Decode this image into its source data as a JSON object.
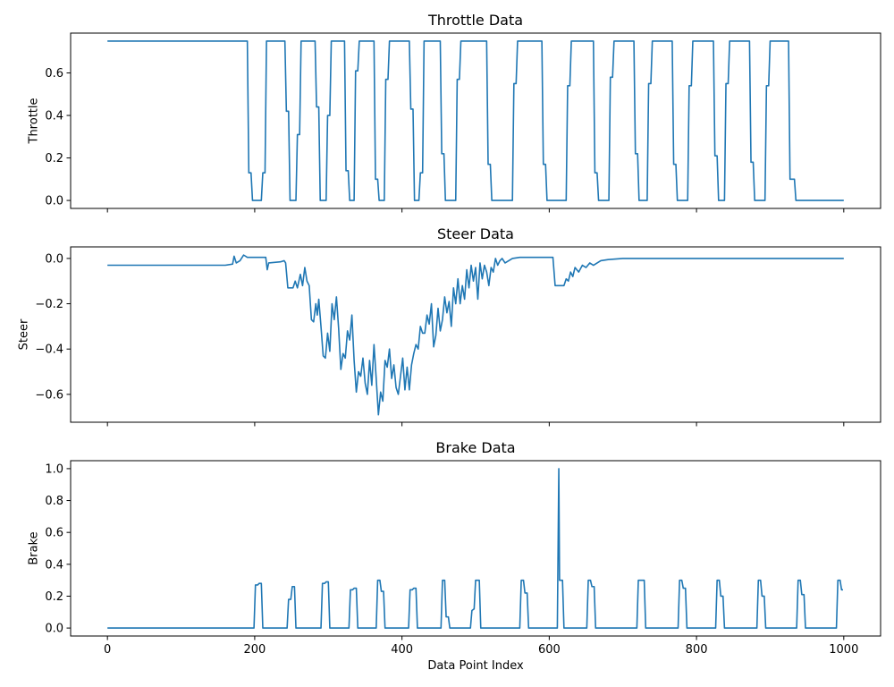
{
  "chart_data": [
    {
      "type": "line",
      "title": "Throttle Data",
      "ylabel": "Throttle",
      "color": "#1f77b4",
      "xlim": [
        -50,
        1050
      ],
      "xticks": [
        0,
        200,
        400,
        600,
        800,
        1000
      ],
      "ylim": [
        -0.0375,
        0.7875
      ],
      "yticks": [
        {
          "value": 0,
          "label": "0.0"
        },
        0.2,
        0.4,
        0.6
      ],
      "x": [
        0,
        190,
        192,
        195,
        197,
        209,
        211,
        214,
        216,
        241,
        243,
        246,
        248,
        256,
        258,
        261,
        263,
        282,
        284,
        287,
        289,
        297,
        299,
        302,
        304,
        322,
        324,
        327,
        329,
        335,
        337,
        340,
        342,
        362,
        364,
        367,
        369,
        376,
        378,
        381,
        383,
        410,
        412,
        415,
        417,
        423,
        425,
        428,
        430,
        452,
        454,
        457,
        459,
        473,
        475,
        478,
        480,
        515,
        517,
        520,
        522,
        550,
        552,
        555,
        557,
        590,
        592,
        595,
        597,
        623,
        625,
        628,
        630,
        660,
        662,
        665,
        667,
        681,
        683,
        686,
        688,
        715,
        717,
        720,
        722,
        733,
        735,
        738,
        740,
        767,
        769,
        772,
        774,
        788,
        790,
        793,
        795,
        823,
        825,
        828,
        830,
        838,
        840,
        843,
        845,
        872,
        874,
        877,
        879,
        893,
        895,
        898,
        900,
        925,
        927,
        933,
        935,
        1000
      ],
      "values": [
        0.75,
        0.75,
        0.13,
        0.13,
        0,
        0,
        0.13,
        0.13,
        0.75,
        0.75,
        0.42,
        0.42,
        0,
        0,
        0.31,
        0.31,
        0.75,
        0.75,
        0.44,
        0.44,
        0,
        0,
        0.4,
        0.4,
        0.75,
        0.75,
        0.14,
        0.14,
        0,
        0,
        0.61,
        0.61,
        0.75,
        0.75,
        0.1,
        0.1,
        0,
        0,
        0.57,
        0.57,
        0.75,
        0.75,
        0.43,
        0.43,
        0,
        0,
        0.13,
        0.13,
        0.75,
        0.75,
        0.22,
        0.22,
        0,
        0,
        0.57,
        0.57,
        0.75,
        0.75,
        0.17,
        0.17,
        0,
        0,
        0.55,
        0.55,
        0.75,
        0.75,
        0.17,
        0.17,
        0,
        0,
        0.54,
        0.54,
        0.75,
        0.75,
        0.13,
        0.13,
        0,
        0,
        0.58,
        0.58,
        0.75,
        0.75,
        0.22,
        0.22,
        0,
        0,
        0.55,
        0.55,
        0.75,
        0.75,
        0.17,
        0.17,
        0,
        0,
        0.54,
        0.54,
        0.75,
        0.75,
        0.21,
        0.21,
        0,
        0,
        0.55,
        0.55,
        0.75,
        0.75,
        0.18,
        0.18,
        0,
        0,
        0.54,
        0.54,
        0.75,
        0.75,
        0.1,
        0.1,
        0,
        0
      ]
    },
    {
      "type": "line",
      "title": "Steer Data",
      "ylabel": "Steer",
      "color": "#1f77b4",
      "xlim": [
        -50,
        1050
      ],
      "xticks": [
        0,
        200,
        400,
        600,
        800,
        1000
      ],
      "ylim": [
        -0.723,
        0.051
      ],
      "yticks": [
        {
          "value": -0.6,
          "label": "−0.6"
        },
        {
          "value": -0.4,
          "label": "−0.4"
        },
        {
          "value": -0.2,
          "label": "−0.2"
        },
        {
          "value": 0,
          "label": "0.0"
        }
      ],
      "x": [
        0,
        160,
        170,
        172,
        175,
        180,
        185,
        190,
        215,
        217,
        219,
        235,
        240,
        242,
        245,
        252,
        255,
        258,
        262,
        265,
        268,
        271,
        274,
        277,
        280,
        283,
        285,
        287,
        290,
        293,
        296,
        299,
        302,
        305,
        308,
        311,
        314,
        317,
        320,
        323,
        326,
        329,
        332,
        335,
        338,
        341,
        344,
        347,
        350,
        353,
        356,
        359,
        362,
        365,
        368,
        371,
        374,
        377,
        380,
        383,
        386,
        389,
        392,
        395,
        398,
        401,
        404,
        407,
        410,
        413,
        416,
        419,
        422,
        425,
        428,
        431,
        434,
        437,
        440,
        443,
        446,
        449,
        452,
        455,
        458,
        461,
        464,
        467,
        470,
        473,
        476,
        479,
        482,
        485,
        488,
        491,
        494,
        497,
        500,
        503,
        506,
        509,
        512,
        515,
        518,
        521,
        524,
        527,
        530,
        533,
        536,
        540,
        545,
        550,
        560,
        605,
        608,
        620,
        623,
        626,
        629,
        632,
        635,
        640,
        645,
        650,
        655,
        660,
        670,
        680,
        700,
        1000
      ],
      "values": [
        -0.03,
        -0.03,
        -0.025,
        0.01,
        -0.02,
        -0.01,
        0.015,
        0.005,
        0.005,
        -0.05,
        -0.02,
        -0.015,
        -0.01,
        -0.02,
        -0.13,
        -0.13,
        -0.1,
        -0.13,
        -0.07,
        -0.12,
        -0.04,
        -0.1,
        -0.12,
        -0.27,
        -0.28,
        -0.2,
        -0.25,
        -0.18,
        -0.3,
        -0.43,
        -0.44,
        -0.33,
        -0.41,
        -0.2,
        -0.27,
        -0.17,
        -0.31,
        -0.49,
        -0.42,
        -0.44,
        -0.32,
        -0.36,
        -0.25,
        -0.45,
        -0.59,
        -0.5,
        -0.52,
        -0.44,
        -0.55,
        -0.6,
        -0.45,
        -0.56,
        -0.38,
        -0.53,
        -0.69,
        -0.59,
        -0.63,
        -0.45,
        -0.48,
        -0.4,
        -0.53,
        -0.47,
        -0.57,
        -0.6,
        -0.52,
        -0.44,
        -0.58,
        -0.48,
        -0.58,
        -0.47,
        -0.42,
        -0.38,
        -0.4,
        -0.3,
        -0.33,
        -0.33,
        -0.25,
        -0.29,
        -0.2,
        -0.39,
        -0.34,
        -0.22,
        -0.32,
        -0.27,
        -0.17,
        -0.24,
        -0.19,
        -0.3,
        -0.13,
        -0.2,
        -0.09,
        -0.2,
        -0.12,
        -0.18,
        -0.05,
        -0.13,
        -0.03,
        -0.1,
        -0.04,
        -0.18,
        -0.02,
        -0.09,
        -0.03,
        -0.06,
        -0.12,
        -0.04,
        -0.06,
        0,
        -0.03,
        -0.01,
        0,
        -0.02,
        -0.01,
        0,
        0.005,
        0.005,
        -0.12,
        -0.12,
        -0.09,
        -0.1,
        -0.06,
        -0.08,
        -0.04,
        -0.06,
        -0.03,
        -0.04,
        -0.02,
        -0.03,
        -0.01,
        -0.005,
        0,
        0
      ]
    },
    {
      "type": "line",
      "title": "Brake Data",
      "ylabel": "Brake",
      "xlabel": "Data Point Index",
      "color": "#1f77b4",
      "xlim": [
        -50,
        1050
      ],
      "xticks": [
        0,
        200,
        400,
        600,
        800,
        1000
      ],
      "ylim": [
        -0.05,
        1.05
      ],
      "yticks": [
        {
          "value": 0,
          "label": "0.0"
        },
        0.2,
        0.4,
        0.6,
        0.8,
        {
          "value": 1,
          "label": "1.0"
        }
      ],
      "x": [
        0,
        199,
        201,
        204,
        206,
        209,
        211,
        244,
        246,
        249,
        251,
        254,
        256,
        290,
        292,
        295,
        297,
        300,
        302,
        328,
        330,
        333,
        335,
        338,
        340,
        365,
        367,
        370,
        372,
        375,
        377,
        409,
        411,
        414,
        416,
        419,
        421,
        453,
        455,
        458,
        460,
        463,
        465,
        493,
        495,
        498,
        500,
        505,
        507,
        560,
        562,
        565,
        567,
        570,
        572,
        611,
        613,
        614,
        618,
        620,
        651,
        653,
        656,
        658,
        661,
        663,
        719,
        721,
        724,
        726,
        729,
        731,
        775,
        777,
        780,
        782,
        785,
        787,
        826,
        828,
        831,
        833,
        836,
        838,
        882,
        884,
        887,
        889,
        892,
        894,
        936,
        938,
        941,
        943,
        946,
        948,
        990,
        992,
        995,
        997,
        999
      ],
      "values": [
        0,
        0,
        0.27,
        0.27,
        0.28,
        0.28,
        0,
        0,
        0.18,
        0.18,
        0.26,
        0.26,
        0,
        0,
        0.28,
        0.28,
        0.29,
        0.29,
        0,
        0,
        0.24,
        0.24,
        0.25,
        0.25,
        0,
        0,
        0.3,
        0.3,
        0.23,
        0.23,
        0,
        0,
        0.24,
        0.24,
        0.25,
        0.25,
        0,
        0,
        0.3,
        0.3,
        0.07,
        0.07,
        0,
        0,
        0.11,
        0.12,
        0.3,
        0.3,
        0,
        0,
        0.3,
        0.3,
        0.22,
        0.22,
        0,
        0,
        1.0,
        0.3,
        0.3,
        0,
        0,
        0.3,
        0.3,
        0.26,
        0.26,
        0,
        0,
        0.3,
        0.3,
        0.3,
        0.3,
        0,
        0,
        0.3,
        0.3,
        0.25,
        0.25,
        0,
        0,
        0.3,
        0.3,
        0.2,
        0.2,
        0,
        0,
        0.3,
        0.3,
        0.2,
        0.2,
        0,
        0,
        0.3,
        0.3,
        0.21,
        0.21,
        0,
        0,
        0.3,
        0.3,
        0.24,
        0.24
      ]
    }
  ]
}
